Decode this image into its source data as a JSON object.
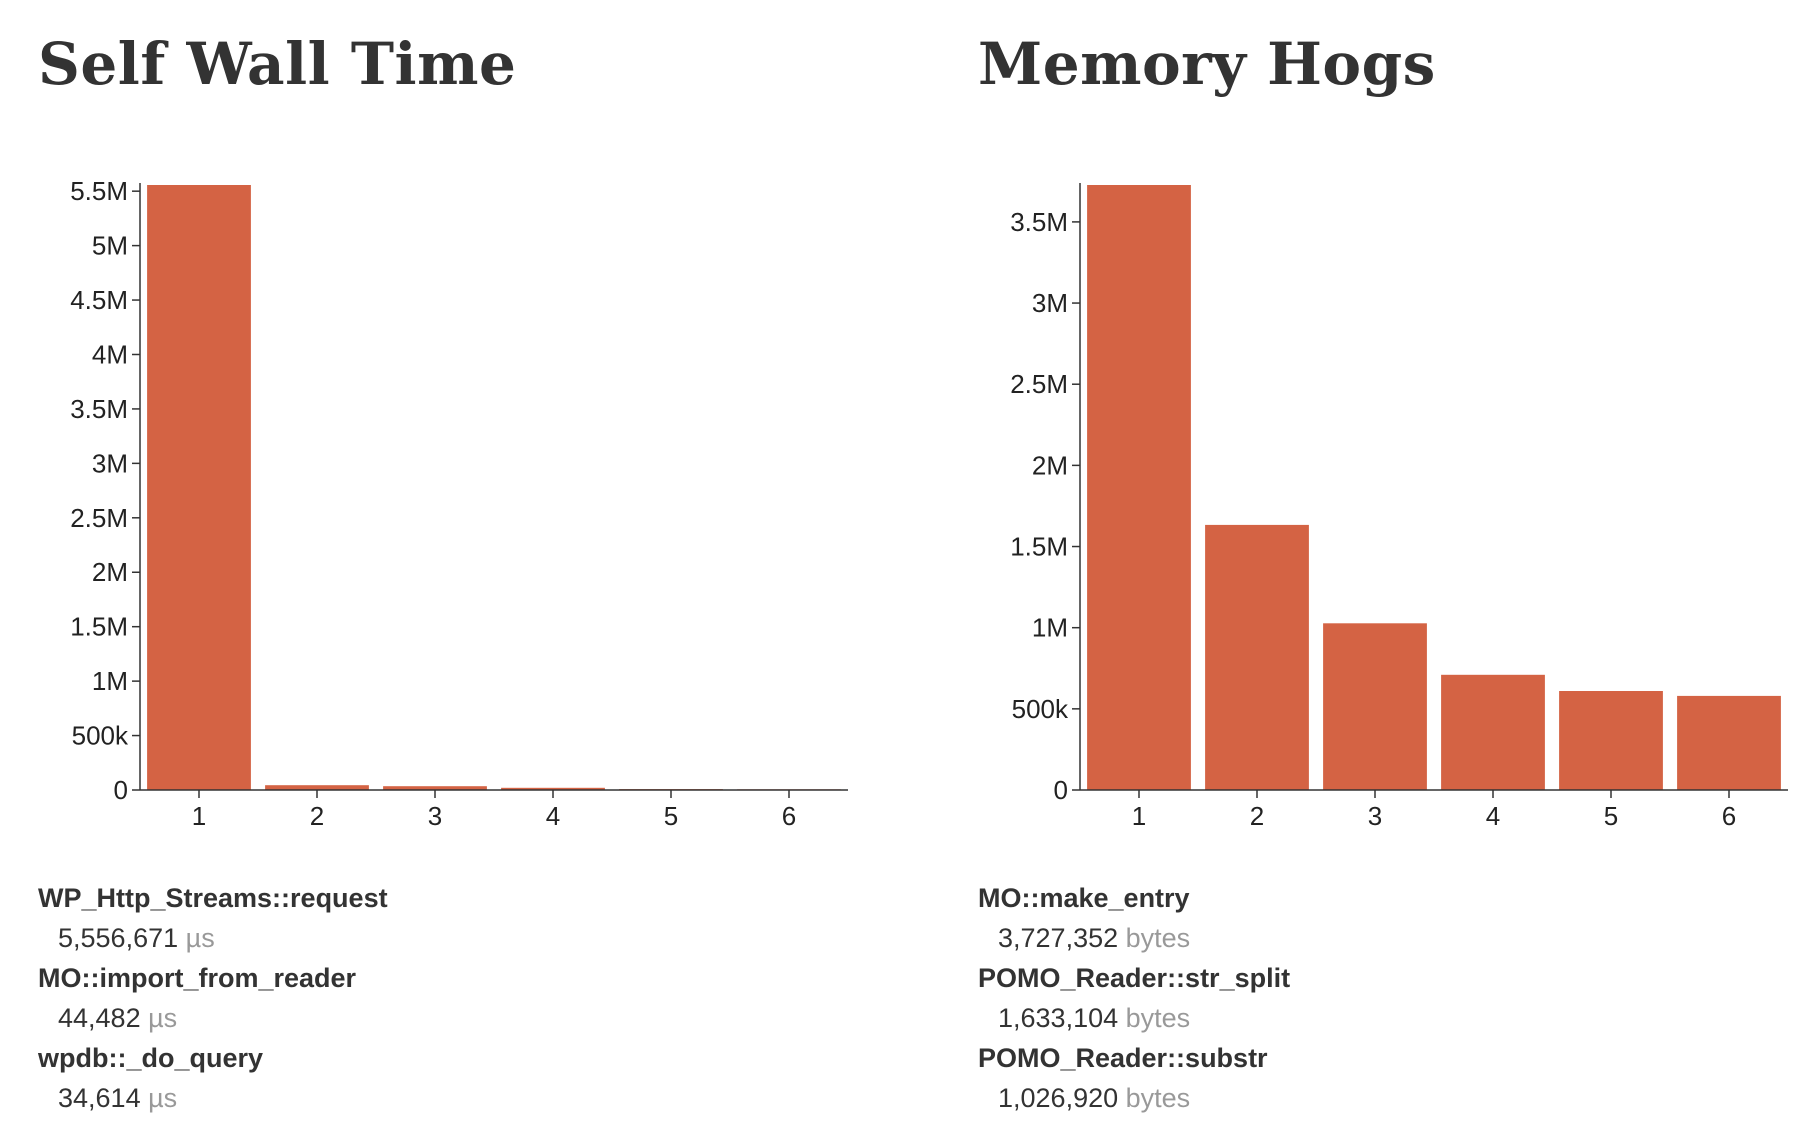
{
  "charts": [
    {
      "title": "Self Wall Time",
      "unit": "µs",
      "chart_data": {
        "type": "bar",
        "title": "Self Wall Time",
        "categories": [
          "1",
          "2",
          "3",
          "4",
          "5",
          "6"
        ],
        "values": [
          5556671,
          44482,
          34614,
          20000,
          8000,
          6000
        ],
        "ylim": [
          0,
          5556671
        ],
        "yticks": [
          0,
          500000,
          1000000,
          1500000,
          2000000,
          2500000,
          3000000,
          3500000,
          4000000,
          4500000,
          5000000,
          5500000
        ],
        "ytick_labels": [
          "0",
          "500k",
          "1M",
          "1.5M",
          "2M",
          "2.5M",
          "3M",
          "3.5M",
          "4M",
          "4.5M",
          "5M",
          "5.5M"
        ],
        "color": "#d46344",
        "grid": false
      },
      "list": [
        {
          "name": "WP_Http_Streams::request",
          "value": "5,556,671"
        },
        {
          "name": "MO::import_from_reader",
          "value": "44,482"
        },
        {
          "name": "wpdb::_do_query",
          "value": "34,614"
        }
      ]
    },
    {
      "title": "Memory Hogs",
      "unit": "bytes",
      "chart_data": {
        "type": "bar",
        "title": "Memory Hogs",
        "categories": [
          "1",
          "2",
          "3",
          "4",
          "5",
          "6"
        ],
        "values": [
          3727352,
          1633104,
          1026920,
          710000,
          610000,
          580000
        ],
        "ylim": [
          0,
          3727352
        ],
        "yticks": [
          0,
          500000,
          1000000,
          1500000,
          2000000,
          2500000,
          3000000,
          3500000
        ],
        "ytick_labels": [
          "0",
          "500k",
          "1M",
          "1.5M",
          "2M",
          "2.5M",
          "3M",
          "3.5M"
        ],
        "color": "#d46344",
        "grid": false
      },
      "list": [
        {
          "name": "MO::make_entry",
          "value": "3,727,352"
        },
        {
          "name": "POMO_Reader::str_split",
          "value": "1,633,104"
        },
        {
          "name": "POMO_Reader::substr",
          "value": "1,026,920"
        }
      ]
    }
  ]
}
